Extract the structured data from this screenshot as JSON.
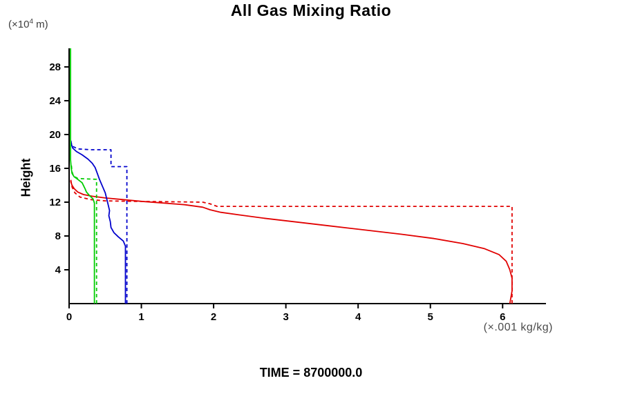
{
  "labels": {
    "y_unit_prefix": "(×10",
    "y_unit_sup": "4",
    "y_unit_suffix": " m)",
    "x_unit": "(×.001 kg/kg)"
  },
  "footer": {
    "time_label": "TIME = 8700000.0"
  },
  "chart_data": {
    "type": "line",
    "title": "All Gas Mixing Ratio",
    "ylabel": "Height",
    "y_axis_unit": "(×10^4 m)",
    "x_axis_unit": "(×.001 kg/kg)",
    "annotation": "TIME = 8700000.0",
    "xlim": [
      0,
      6.6
    ],
    "ylim": [
      0,
      30.2
    ],
    "xticks": [
      0,
      1,
      2,
      3,
      4,
      5,
      6
    ],
    "yticks": [
      4,
      8,
      12,
      16,
      20,
      24,
      28
    ],
    "grid": false,
    "legend": "none",
    "series": [
      {
        "name": "red-solid",
        "color": "#e10000",
        "style": "solid",
        "points": [
          [
            6.1,
            0
          ],
          [
            6.13,
            1.5
          ],
          [
            6.13,
            3
          ],
          [
            6.1,
            4
          ],
          [
            6.05,
            5
          ],
          [
            5.95,
            5.8
          ],
          [
            5.75,
            6.5
          ],
          [
            5.45,
            7.1
          ],
          [
            5.05,
            7.7
          ],
          [
            4.6,
            8.2
          ],
          [
            4.1,
            8.7
          ],
          [
            3.6,
            9.2
          ],
          [
            3.1,
            9.7
          ],
          [
            2.7,
            10.1
          ],
          [
            2.35,
            10.5
          ],
          [
            2.1,
            10.8
          ],
          [
            1.95,
            11.1
          ],
          [
            1.85,
            11.4
          ],
          [
            1.6,
            11.7
          ],
          [
            1.3,
            11.9
          ],
          [
            1.0,
            12.1
          ],
          [
            0.75,
            12.3
          ],
          [
            0.5,
            12.5
          ],
          [
            0.32,
            12.7
          ],
          [
            0.2,
            12.9
          ],
          [
            0.12,
            13.2
          ],
          [
            0.07,
            13.6
          ],
          [
            0.04,
            14.0
          ],
          [
            0.02,
            14.5
          ]
        ]
      },
      {
        "name": "red-dashed",
        "color": "#e10000",
        "style": "dashed",
        "points": [
          [
            6.13,
            0
          ],
          [
            6.13,
            11.5
          ],
          [
            2.05,
            11.5
          ],
          [
            1.95,
            11.8
          ],
          [
            1.85,
            12.0
          ],
          [
            1.4,
            12.05
          ],
          [
            0.9,
            12.1
          ],
          [
            0.5,
            12.15
          ],
          [
            0.3,
            12.3
          ],
          [
            0.15,
            12.6
          ],
          [
            0.08,
            13.1
          ],
          [
            0.04,
            13.8
          ],
          [
            0.02,
            14.8
          ]
        ]
      },
      {
        "name": "blue-solid",
        "color": "#0000cc",
        "style": "solid",
        "points": [
          [
            0.78,
            0
          ],
          [
            0.78,
            6.8
          ],
          [
            0.75,
            7.4
          ],
          [
            0.68,
            7.9
          ],
          [
            0.62,
            8.4
          ],
          [
            0.58,
            9.0
          ],
          [
            0.57,
            9.7
          ],
          [
            0.55,
            10.4
          ],
          [
            0.56,
            11.0
          ],
          [
            0.54,
            11.7
          ],
          [
            0.52,
            12.4
          ],
          [
            0.5,
            13.1
          ],
          [
            0.46,
            13.9
          ],
          [
            0.42,
            14.7
          ],
          [
            0.39,
            15.4
          ],
          [
            0.36,
            16.1
          ],
          [
            0.32,
            16.6
          ],
          [
            0.26,
            17.1
          ],
          [
            0.18,
            17.6
          ],
          [
            0.1,
            18.0
          ],
          [
            0.05,
            18.4
          ],
          [
            0.03,
            18.9
          ],
          [
            0.02,
            19.3
          ]
        ]
      },
      {
        "name": "blue-dashed",
        "color": "#0000cc",
        "style": "dashed",
        "points": [
          [
            0.8,
            0
          ],
          [
            0.8,
            16.2
          ],
          [
            0.58,
            16.2
          ],
          [
            0.58,
            18.2
          ],
          [
            0.3,
            18.2
          ],
          [
            0.12,
            18.3
          ],
          [
            0.05,
            18.6
          ],
          [
            0.03,
            19.0
          ],
          [
            0.02,
            19.5
          ]
        ]
      },
      {
        "name": "green-solid",
        "color": "#00cc00",
        "style": "solid",
        "points": [
          [
            0.35,
            0
          ],
          [
            0.35,
            11.9
          ],
          [
            0.33,
            12.4
          ],
          [
            0.28,
            12.8
          ],
          [
            0.24,
            13.2
          ],
          [
            0.22,
            13.6
          ],
          [
            0.18,
            14.3
          ],
          [
            0.12,
            14.7
          ],
          [
            0.07,
            15.0
          ],
          [
            0.04,
            15.4
          ],
          [
            0.03,
            16.0
          ],
          [
            0.02,
            17.0
          ],
          [
            0.02,
            30.2
          ]
        ]
      },
      {
        "name": "green-dashed",
        "color": "#00cc00",
        "style": "dashed",
        "points": [
          [
            0.38,
            0
          ],
          [
            0.38,
            14.7
          ],
          [
            0.25,
            14.75
          ],
          [
            0.12,
            14.8
          ],
          [
            0.06,
            15.1
          ],
          [
            0.04,
            15.6
          ],
          [
            0.03,
            16.5
          ]
        ]
      }
    ]
  }
}
